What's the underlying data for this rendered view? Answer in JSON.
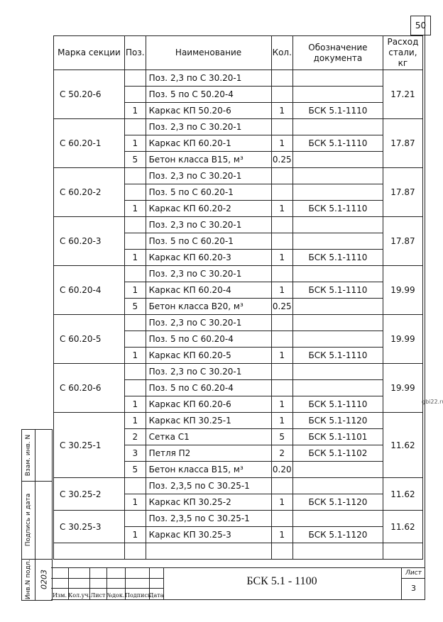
{
  "sheet_top_number": "50",
  "headers": {
    "mark": "Марка секции",
    "pos": "Поз.",
    "name": "Наименование",
    "qty": "Кол.",
    "doc": "Обозначение документа",
    "steel": "Расход стали, кг"
  },
  "groups": [
    {
      "mark": "С 50.20-6",
      "steel": "17.21",
      "rows": [
        {
          "pos": "",
          "name": "Поз. 2,3 по С 30.20-1",
          "qty": "",
          "doc": ""
        },
        {
          "pos": "",
          "name": "Поз. 5 по С 50.20-4",
          "qty": "",
          "doc": ""
        },
        {
          "pos": "1",
          "name": "Каркас КП 50.20-6",
          "qty": "1",
          "doc": "БСК 5.1-1110"
        }
      ]
    },
    {
      "mark": "С 60.20-1",
      "steel": "17.87",
      "rows": [
        {
          "pos": "",
          "name": "Поз. 2,3 по С 30.20-1",
          "qty": "",
          "doc": ""
        },
        {
          "pos": "1",
          "name": "Каркас КП 60.20-1",
          "qty": "1",
          "doc": "БСК 5.1-1110"
        },
        {
          "pos": "5",
          "name": "Бетон класса В15, м³",
          "qty": "0.25",
          "doc": ""
        }
      ]
    },
    {
      "mark": "С 60.20-2",
      "steel": "17.87",
      "rows": [
        {
          "pos": "",
          "name": "Поз. 2,3 по С 30.20-1",
          "qty": "",
          "doc": ""
        },
        {
          "pos": "",
          "name": "Поз. 5 по С 60.20-1",
          "qty": "",
          "doc": ""
        },
        {
          "pos": "1",
          "name": "Каркас КП 60.20-2",
          "qty": "1",
          "doc": "БСК 5.1-1110"
        }
      ]
    },
    {
      "mark": "С 60.20-3",
      "steel": "17.87",
      "rows": [
        {
          "pos": "",
          "name": "Поз. 2,3 по С 30.20-1",
          "qty": "",
          "doc": ""
        },
        {
          "pos": "",
          "name": "Поз. 5 по С 60.20-1",
          "qty": "",
          "doc": ""
        },
        {
          "pos": "1",
          "name": "Каркас КП 60.20-3",
          "qty": "1",
          "doc": "БСК 5.1-1110"
        }
      ]
    },
    {
      "mark": "С 60.20-4",
      "steel": "19.99",
      "rows": [
        {
          "pos": "",
          "name": "Поз. 2,3 по С 30.20-1",
          "qty": "",
          "doc": ""
        },
        {
          "pos": "1",
          "name": "Каркас КП 60.20-4",
          "qty": "1",
          "doc": "БСК 5.1-1110"
        },
        {
          "pos": "5",
          "name": "Бетон класса В20, м³",
          "qty": "0.25",
          "doc": ""
        }
      ]
    },
    {
      "mark": "С 60.20-5",
      "steel": "19.99",
      "rows": [
        {
          "pos": "",
          "name": "Поз. 2,3 по С 30.20-1",
          "qty": "",
          "doc": ""
        },
        {
          "pos": "",
          "name": "Поз. 5 по С 60.20-4",
          "qty": "",
          "doc": ""
        },
        {
          "pos": "1",
          "name": "Каркас КП 60.20-5",
          "qty": "1",
          "doc": "БСК 5.1-1110"
        }
      ]
    },
    {
      "mark": "С 60.20-6",
      "steel": "19.99",
      "rows": [
        {
          "pos": "",
          "name": "Поз. 2,3 по С 30.20-1",
          "qty": "",
          "doc": ""
        },
        {
          "pos": "",
          "name": "Поз. 5 по С 60.20-4",
          "qty": "",
          "doc": ""
        },
        {
          "pos": "1",
          "name": "Каркас КП 60.20-6",
          "qty": "1",
          "doc": "БСК 5.1-1110"
        }
      ]
    },
    {
      "mark": "С 30.25-1",
      "steel": "11.62",
      "rows": [
        {
          "pos": "1",
          "name": "Каркас КП 30.25-1",
          "qty": "1",
          "doc": "БСК 5.1-1120"
        },
        {
          "pos": "2",
          "name": "Сетка  С1",
          "qty": "5",
          "doc": "БСК 5.1-1101"
        },
        {
          "pos": "3",
          "name": "Петля П2",
          "qty": "2",
          "doc": "БСК 5.1-1102"
        },
        {
          "pos": "5",
          "name": "Бетон класса В15, м³",
          "qty": "0.20",
          "doc": ""
        }
      ]
    },
    {
      "mark": "С 30.25-2",
      "steel": "11.62",
      "rows": [
        {
          "pos": "",
          "name": "Поз. 2,3,5 по С 30.25-1",
          "qty": "",
          "doc": ""
        },
        {
          "pos": "1",
          "name": "Каркас КП 30.25-2",
          "qty": "1",
          "doc": "БСК 5.1-1120"
        }
      ]
    },
    {
      "mark": "С 30.25-3",
      "steel": "11.62",
      "rows": [
        {
          "pos": "",
          "name": "Поз. 2,3,5 по С 30.25-1",
          "qty": "",
          "doc": ""
        },
        {
          "pos": "1",
          "name": "Каркас КП 30.25-3",
          "qty": "1",
          "doc": "БСК 5.1-1120"
        }
      ]
    }
  ],
  "side_stamp": {
    "inv_swap": "Взам. инв. N",
    "sign_date": "Подпись и дата",
    "inv_orig": "Инв.N подл.",
    "inv_orig_value": "0203"
  },
  "title_block": {
    "cols": [
      "Изм.",
      "Кол.уч.",
      "Лист",
      "№док.",
      "Подпись",
      "Дата"
    ],
    "code": "БСК 5.1 - 1100",
    "sheet_label": "Лист",
    "sheet_value": "3"
  },
  "watermark": "gbi22.ru"
}
